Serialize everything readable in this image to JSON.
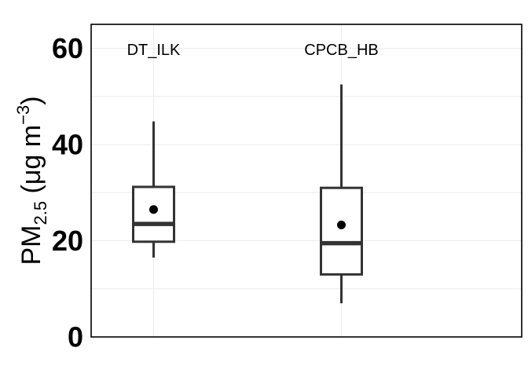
{
  "chart_data": {
    "type": "boxplot",
    "title": "",
    "xlabel": "",
    "ylabel": {
      "prefix": "PM",
      "subscript": "2.5",
      "unit_open": " (μg m",
      "superscript": "−3",
      "unit_close": ")"
    },
    "ylim": [
      0,
      65
    ],
    "yticks": [
      {
        "value": 0,
        "label": "0"
      },
      {
        "value": 20,
        "label": "20"
      },
      {
        "value": 40,
        "label": "40"
      },
      {
        "value": 60,
        "label": "60"
      }
    ],
    "grid": true,
    "legend": "none",
    "groups": [
      {
        "label": "DT_ILK",
        "whisker_low": 16.5,
        "q1": 19.8,
        "median": 23.5,
        "q3": 31.2,
        "whisker_high": 44.8,
        "mean": 26.5
      },
      {
        "label": "CPCB_HB",
        "whisker_low": 7.0,
        "q1": 13.0,
        "median": 19.5,
        "q3": 31.0,
        "whisker_high": 52.5,
        "mean": 23.3
      }
    ],
    "colors": {
      "box": "#333333",
      "mean_point": "#000000",
      "grid": "#ebebeb",
      "panel_border": "#000000"
    }
  }
}
